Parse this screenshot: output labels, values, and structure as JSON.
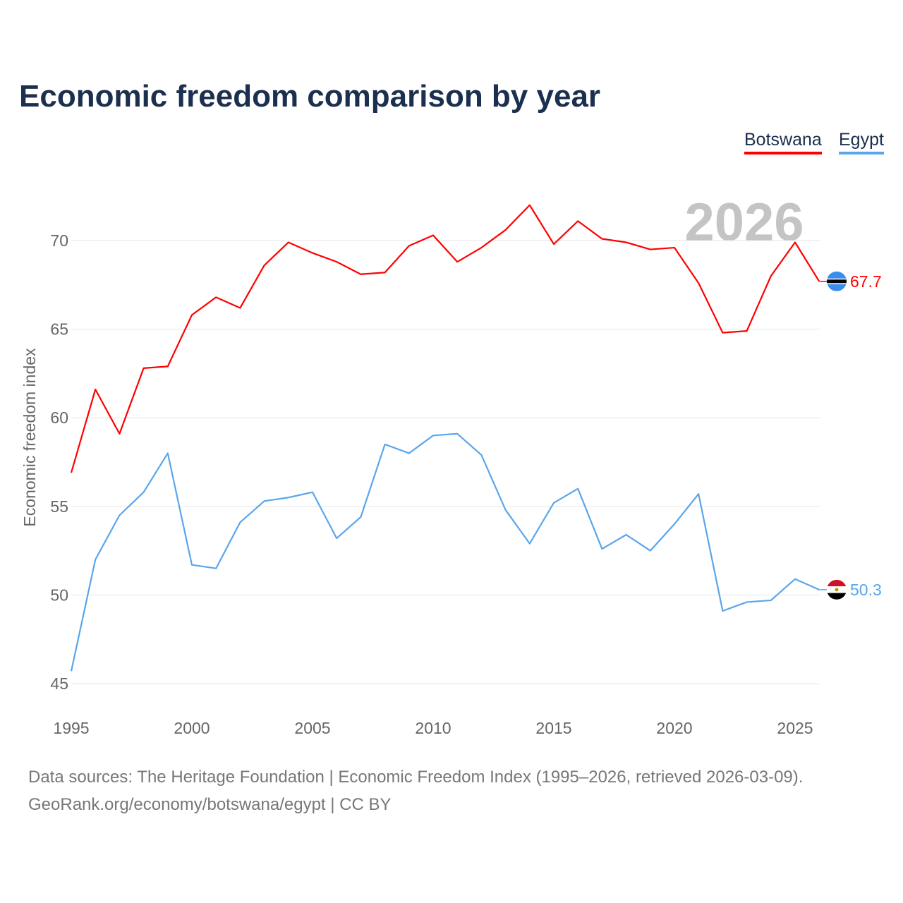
{
  "title": "Economic freedom comparison by year",
  "watermark_year": "2026",
  "source_line1": "Data sources: The Heritage Foundation | Economic Freedom Index (1995–2026, retrieved 2026-03-09).",
  "source_line2": "GeoRank.org/economy/botswana/egypt | CC BY",
  "chart_data": {
    "type": "line",
    "title": "Economic freedom comparison by year",
    "xlabel": "",
    "ylabel": "Economic freedom index",
    "xlim": [
      1995,
      2026
    ],
    "ylim": [
      45,
      72.5
    ],
    "xticks": [
      "1995",
      "2000",
      "2005",
      "2010",
      "2015",
      "2020",
      "2025"
    ],
    "yticks": [
      "45",
      "50",
      "55",
      "60",
      "65",
      "70"
    ],
    "legend": "top-right",
    "grid": true,
    "x": [
      1995,
      1996,
      1997,
      1998,
      1999,
      2000,
      2001,
      2002,
      2003,
      2004,
      2005,
      2006,
      2007,
      2008,
      2009,
      2010,
      2011,
      2012,
      2013,
      2014,
      2015,
      2016,
      2017,
      2018,
      2019,
      2020,
      2021,
      2022,
      2023,
      2024,
      2025,
      2026
    ],
    "series": [
      {
        "name": "Botswana",
        "color": "#ff0000",
        "end_label": "67.7",
        "values": [
          56.9,
          61.6,
          59.1,
          62.8,
          62.9,
          65.8,
          66.8,
          66.2,
          68.6,
          69.9,
          69.3,
          68.8,
          68.1,
          68.2,
          69.7,
          70.3,
          68.8,
          69.6,
          70.6,
          72.0,
          69.8,
          71.1,
          70.1,
          69.9,
          69.5,
          69.6,
          67.6,
          64.8,
          64.9,
          68.0,
          69.9,
          67.7
        ]
      },
      {
        "name": "Egypt",
        "color": "#5aa5ec",
        "end_label": "50.3",
        "values": [
          45.7,
          52.0,
          54.5,
          55.8,
          58.0,
          51.7,
          51.5,
          54.1,
          55.3,
          55.5,
          55.8,
          53.2,
          54.4,
          58.5,
          58.0,
          59.0,
          59.1,
          57.9,
          54.8,
          52.9,
          55.2,
          56.0,
          52.6,
          53.4,
          52.5,
          54.0,
          55.7,
          49.1,
          49.6,
          49.7,
          50.9,
          50.3
        ]
      }
    ]
  }
}
